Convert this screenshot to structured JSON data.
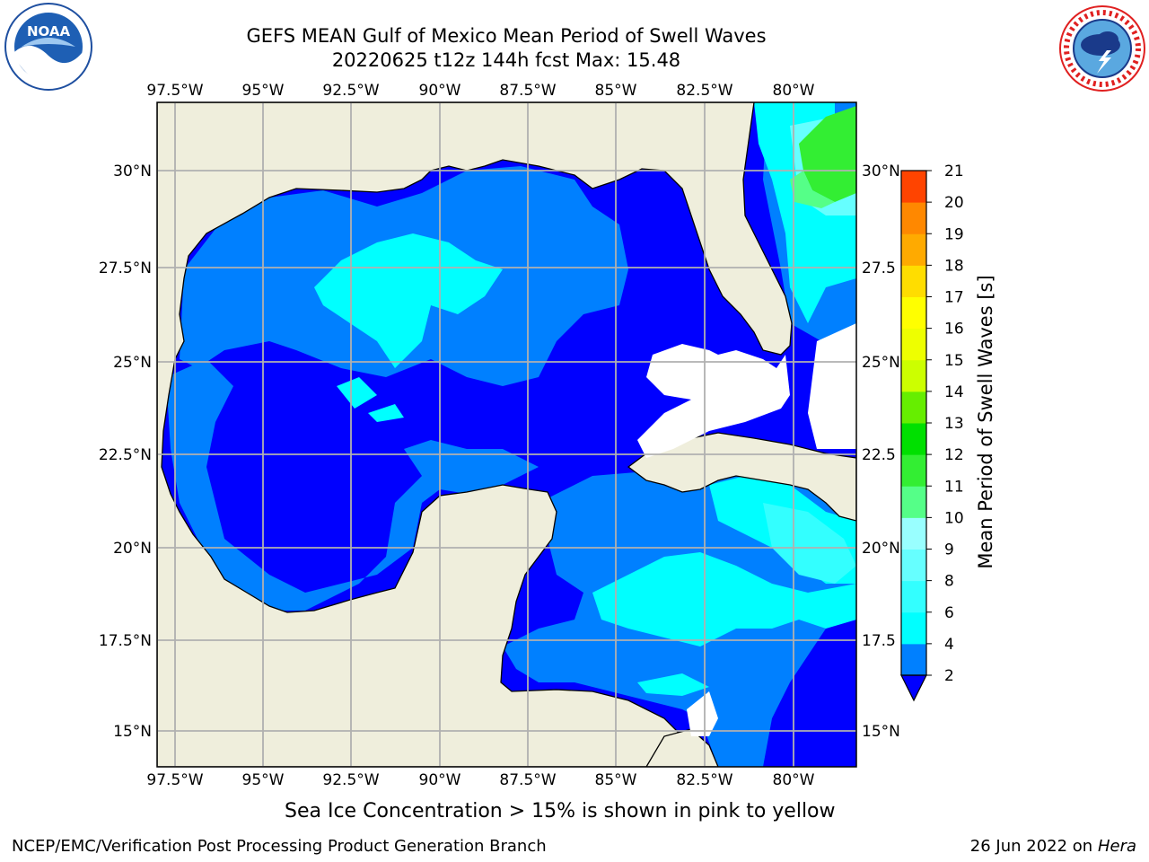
{
  "title_line1": "GEFS MEAN Gulf of Mexico Mean Period of Swell Waves",
  "title_line2": "20220625 t12z 144h fcst   Max: 15.48",
  "logos": {
    "left": "noaa-logo",
    "right": "nws-logo"
  },
  "map": {
    "lon_ticks": [
      "97.5°W",
      "95°W",
      "92.5°W",
      "90°W",
      "87.5°W",
      "85°W",
      "82.5°W",
      "80°W"
    ],
    "lat_ticks_left": [
      "30°N",
      "27.5°N",
      "25°N",
      "22.5°N",
      "20°N",
      "17.5°N",
      "15°N"
    ],
    "lat_ticks_right": [
      "30°N",
      "27.5",
      "25°N",
      "22.5",
      "20°N",
      "17.5",
      "15°N"
    ],
    "lon_range": [
      -98,
      -79
    ],
    "lat_range": [
      14,
      31.75
    ],
    "land_color": "#efeedc",
    "grid_color": "#b0b0b0"
  },
  "colorbar": {
    "label": "Mean Period of Swell Waves [s]",
    "ticks": [
      "2",
      "4",
      "6",
      "8",
      "9",
      "10",
      "11",
      "12",
      "13",
      "14",
      "15",
      "16",
      "17",
      "18",
      "19",
      "20",
      "21"
    ],
    "levels": [
      2,
      4,
      6,
      8,
      9,
      10,
      11,
      12,
      13,
      14,
      15,
      16,
      17,
      18,
      19,
      20,
      21
    ],
    "colors": [
      "#0080ff",
      "#00ffff",
      "#33ffff",
      "#66ffff",
      "#99ffff",
      "#55ff88",
      "#33ee33",
      "#00e000",
      "#66ee00",
      "#ccff00",
      "#eeff00",
      "#ffff00",
      "#ffdd00",
      "#ffaa00",
      "#ff8800",
      "#ff4400",
      "#ff0000"
    ],
    "under_color": "#0000ff"
  },
  "note": "Sea Ice Concentration > 15% is shown in pink to yellow",
  "footer_left": "NCEP/EMC/Verification Post Processing Product Generation Branch",
  "footer_date": "26 Jun 2022 on",
  "footer_host": "Hera"
}
